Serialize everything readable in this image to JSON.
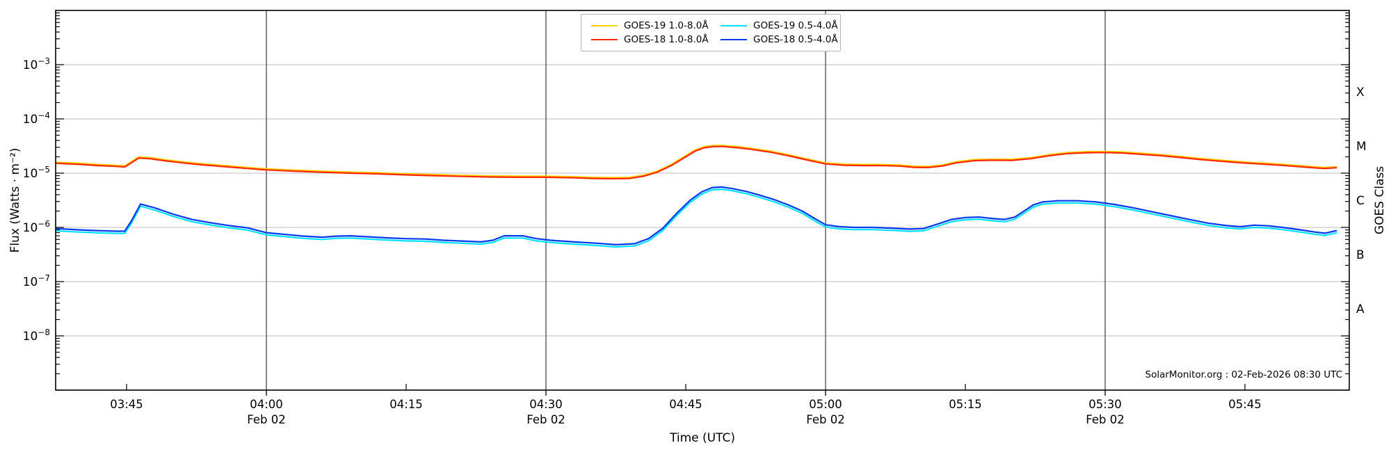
{
  "chart_data": {
    "type": "line",
    "title": "",
    "xlabel": "Time (UTC)",
    "ylabel_left": "Flux (Watts · m⁻²)",
    "ylabel_right": "GOES Class",
    "watermark": "SolarMonitor.org : 02-Feb-2026 08:30 UTC",
    "grid": "horizontal light gray at each labeled decade; dark vertical lines at half-hour marks",
    "legend_position": "top center, 2 columns",
    "x_axis": {
      "unit": "minutes after 00:00 UTC, 02 Feb 2026",
      "range_minutes": [
        217.4,
        356.2
      ],
      "ticks": [
        {
          "m": 225,
          "label": "03:45"
        },
        {
          "m": 240,
          "label": "04:00",
          "date": "Feb 02",
          "gridline": true
        },
        {
          "m": 255,
          "label": "04:15"
        },
        {
          "m": 270,
          "label": "04:30",
          "date": "Feb 02",
          "gridline": true
        },
        {
          "m": 285,
          "label": "04:45"
        },
        {
          "m": 300,
          "label": "05:00",
          "date": "Feb 02",
          "gridline": true
        },
        {
          "m": 315,
          "label": "05:15"
        },
        {
          "m": 330,
          "label": "05:30",
          "date": "Feb 02",
          "gridline": true
        },
        {
          "m": 345,
          "label": "05:45"
        }
      ]
    },
    "y_axis": {
      "scale": "log10",
      "range_exponents": [
        -9,
        -2
      ],
      "tick_exponents": [
        -3,
        -4,
        -5,
        -6,
        -7,
        -8
      ],
      "unit": "Watts/m^2"
    },
    "right_axis_classes": [
      {
        "label": "X",
        "log10_flux": -3.5
      },
      {
        "label": "M",
        "log10_flux": -4.5
      },
      {
        "label": "C",
        "log10_flux": -5.5
      },
      {
        "label": "B",
        "log10_flux": -6.5
      },
      {
        "label": "A",
        "log10_flux": -7.5
      }
    ],
    "series": [
      {
        "name": "GOES-19 1.0-8.0Å",
        "color": "#ffd000",
        "derived_from": "GOES-18 1.0-8.0Å",
        "scale": 1.045,
        "note": "nearly identical to GOES-18 long channel; visible only as a faint fringe"
      },
      {
        "name": "GOES-19 0.5-4.0Å",
        "color": "#00e0ff",
        "derived_from": "GOES-18 0.5-4.0Å",
        "scale": 0.91,
        "note": "nearly identical to GOES-18 short channel; visible only as a faint fringe"
      },
      {
        "name": "GOES-18 1.0-8.0Å",
        "color": "#ff2800",
        "points": [
          [
            217.4,
            1.52e-05
          ],
          [
            220,
            1.45e-05
          ],
          [
            222,
            1.38e-05
          ],
          [
            224,
            1.33e-05
          ],
          [
            224.8,
            1.3e-05
          ],
          [
            225.5,
            1.55e-05
          ],
          [
            226.3,
            1.9e-05
          ],
          [
            227.5,
            1.85e-05
          ],
          [
            229,
            1.7e-05
          ],
          [
            231,
            1.55e-05
          ],
          [
            233,
            1.43e-05
          ],
          [
            236,
            1.3e-05
          ],
          [
            238,
            1.22e-05
          ],
          [
            240,
            1.15e-05
          ],
          [
            243,
            1.09e-05
          ],
          [
            246,
            1.04e-05
          ],
          [
            249,
            1e-05
          ],
          [
            252,
            9.7e-06
          ],
          [
            255,
            9.3e-06
          ],
          [
            258,
            9e-06
          ],
          [
            261,
            8.7e-06
          ],
          [
            264,
            8.5e-06
          ],
          [
            267,
            8.4e-06
          ],
          [
            270,
            8.4e-06
          ],
          [
            273,
            8.2e-06
          ],
          [
            275,
            8e-06
          ],
          [
            277,
            7.9e-06
          ],
          [
            279,
            8e-06
          ],
          [
            280.5,
            8.8e-06
          ],
          [
            282,
            1.05e-05
          ],
          [
            283.5,
            1.4e-05
          ],
          [
            285,
            2e-05
          ],
          [
            286,
            2.55e-05
          ],
          [
            287,
            2.95e-05
          ],
          [
            288,
            3.1e-05
          ],
          [
            289,
            3.1e-05
          ],
          [
            290.5,
            2.95e-05
          ],
          [
            292,
            2.75e-05
          ],
          [
            294,
            2.45e-05
          ],
          [
            296,
            2.1e-05
          ],
          [
            298,
            1.75e-05
          ],
          [
            300,
            1.48e-05
          ],
          [
            302,
            1.4e-05
          ],
          [
            304,
            1.38e-05
          ],
          [
            306,
            1.38e-05
          ],
          [
            308,
            1.35e-05
          ],
          [
            309.5,
            1.28e-05
          ],
          [
            311,
            1.27e-05
          ],
          [
            312.5,
            1.35e-05
          ],
          [
            314,
            1.55e-05
          ],
          [
            316,
            1.7e-05
          ],
          [
            318,
            1.73e-05
          ],
          [
            320,
            1.72e-05
          ],
          [
            322,
            1.85e-05
          ],
          [
            324,
            2.1e-05
          ],
          [
            326,
            2.3e-05
          ],
          [
            328,
            2.38e-05
          ],
          [
            330,
            2.4e-05
          ],
          [
            332,
            2.35e-05
          ],
          [
            334,
            2.22e-05
          ],
          [
            336,
            2.1e-05
          ],
          [
            338,
            1.95e-05
          ],
          [
            340,
            1.8e-05
          ],
          [
            342,
            1.68e-05
          ],
          [
            344,
            1.58e-05
          ],
          [
            346,
            1.5e-05
          ],
          [
            348,
            1.43e-05
          ],
          [
            350,
            1.35e-05
          ],
          [
            352,
            1.27e-05
          ],
          [
            353.5,
            1.22e-05
          ],
          [
            354.8,
            1.26e-05
          ]
        ]
      },
      {
        "name": "GOES-18 0.5-4.0Å",
        "color": "#0038f0",
        "points": [
          [
            217.4,
            9.5e-07
          ],
          [
            220,
            9e-07
          ],
          [
            222,
            8.7e-07
          ],
          [
            224,
            8.5e-07
          ],
          [
            224.8,
            8.5e-07
          ],
          [
            225.5,
            1.3e-06
          ],
          [
            226.5,
            2.7e-06
          ],
          [
            228,
            2.3e-06
          ],
          [
            230,
            1.75e-06
          ],
          [
            232,
            1.4e-06
          ],
          [
            234,
            1.22e-06
          ],
          [
            236,
            1.08e-06
          ],
          [
            238,
            9.8e-07
          ],
          [
            240,
            8e-07
          ],
          [
            241,
            7.7e-07
          ],
          [
            242.5,
            7.3e-07
          ],
          [
            244,
            6.9e-07
          ],
          [
            246,
            6.6e-07
          ],
          [
            247.5,
            6.9e-07
          ],
          [
            249,
            7e-07
          ],
          [
            251,
            6.7e-07
          ],
          [
            253,
            6.4e-07
          ],
          [
            255,
            6.2e-07
          ],
          [
            257,
            6.1e-07
          ],
          [
            259,
            5.8e-07
          ],
          [
            261,
            5.6e-07
          ],
          [
            263,
            5.4e-07
          ],
          [
            264.3,
            5.8e-07
          ],
          [
            265.5,
            7e-07
          ],
          [
            267.5,
            7e-07
          ],
          [
            269,
            6.2e-07
          ],
          [
            270.5,
            5.8e-07
          ],
          [
            273,
            5.4e-07
          ],
          [
            275.5,
            5.1e-07
          ],
          [
            277.5,
            4.8e-07
          ],
          [
            279.5,
            5e-07
          ],
          [
            281,
            6.2e-07
          ],
          [
            282.5,
            9.5e-07
          ],
          [
            284,
            1.8e-06
          ],
          [
            285.5,
            3.2e-06
          ],
          [
            286.7,
            4.5e-06
          ],
          [
            287.8,
            5.4e-06
          ],
          [
            288.8,
            5.55e-06
          ],
          [
            290,
            5.2e-06
          ],
          [
            291.5,
            4.6e-06
          ],
          [
            293,
            3.9e-06
          ],
          [
            294.5,
            3.25e-06
          ],
          [
            296,
            2.6e-06
          ],
          [
            297.5,
            2e-06
          ],
          [
            299,
            1.4e-06
          ],
          [
            300,
            1.12e-06
          ],
          [
            301.5,
            1.03e-06
          ],
          [
            303,
            1e-06
          ],
          [
            305,
            1e-06
          ],
          [
            307,
            9.7e-07
          ],
          [
            309,
            9.3e-07
          ],
          [
            310.5,
            9.5e-07
          ],
          [
            312,
            1.15e-06
          ],
          [
            313.5,
            1.4e-06
          ],
          [
            315,
            1.52e-06
          ],
          [
            316.5,
            1.55e-06
          ],
          [
            318,
            1.45e-06
          ],
          [
            319.2,
            1.4e-06
          ],
          [
            320.3,
            1.55e-06
          ],
          [
            321.3,
            2e-06
          ],
          [
            322.3,
            2.6e-06
          ],
          [
            323.3,
            2.95e-06
          ],
          [
            325,
            3.1e-06
          ],
          [
            327,
            3.1e-06
          ],
          [
            329,
            2.95e-06
          ],
          [
            331,
            2.65e-06
          ],
          [
            333,
            2.3e-06
          ],
          [
            335,
            1.95e-06
          ],
          [
            337,
            1.65e-06
          ],
          [
            339,
            1.4e-06
          ],
          [
            341,
            1.2e-06
          ],
          [
            343,
            1.08e-06
          ],
          [
            344.5,
            1.03e-06
          ],
          [
            346,
            1.1e-06
          ],
          [
            347.5,
            1.07e-06
          ],
          [
            349,
            1e-06
          ],
          [
            351,
            9e-07
          ],
          [
            352.5,
            8.2e-07
          ],
          [
            353.6,
            7.8e-07
          ],
          [
            354.8,
            8.7e-07
          ]
        ]
      }
    ],
    "legend_order": [
      "GOES-19 1.0-8.0Å",
      "GOES-19 0.5-4.0Å",
      "GOES-18 1.0-8.0Å",
      "GOES-18 0.5-4.0Å"
    ]
  }
}
